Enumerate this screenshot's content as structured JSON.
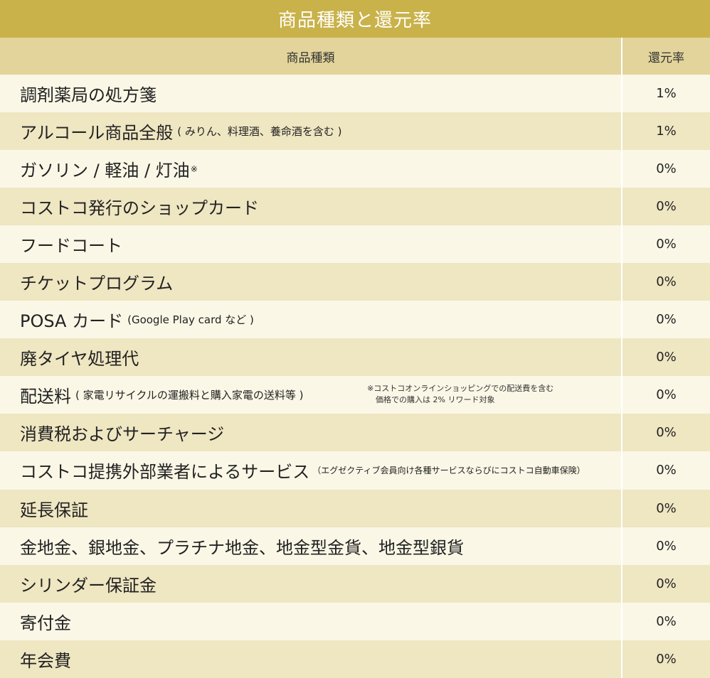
{
  "title": "商品種類と還元率",
  "header": {
    "col1": "商品種類",
    "col2": "還元率"
  },
  "rows": [
    {
      "name": "調剤薬局の処方箋",
      "sub": "",
      "rate": "1%"
    },
    {
      "name": "アルコール商品全般",
      "sub": "( みりん、料理酒、養命酒を含む )",
      "rate": "1%"
    },
    {
      "name": "ガソリン / 軽油 / 灯油",
      "sup": "※",
      "rate": "0%"
    },
    {
      "name": "コストコ発行のショップカード",
      "rate": "0%"
    },
    {
      "name": "フードコート",
      "rate": "0%"
    },
    {
      "name": "チケットプログラム",
      "rate": "0%"
    },
    {
      "name": "POSA カード",
      "sub": "(Google Play card など )",
      "rate": "0%"
    },
    {
      "name": "廃タイヤ処理代",
      "rate": "0%"
    },
    {
      "name": "配送料",
      "sub": "( 家電リサイクルの運搬料と購入家電の送料等 )",
      "note1": "※コストコオンラインショッピングでの配送費を含む",
      "note2": "価格での購入は 2% リワード対象",
      "rate": "0%"
    },
    {
      "name": "消費税およびサーチャージ",
      "rate": "0%"
    },
    {
      "name": "コストコ提携外部業者によるサービス",
      "sub": "（エグゼクティブ会員向け各種サービスならびにコストコ自動車保険）",
      "rate": "0%"
    },
    {
      "name": "延長保証",
      "rate": "0%"
    },
    {
      "name": "金地金、銀地金、プラチナ地金、地金型金貨、地金型銀貨",
      "rate": "0%"
    },
    {
      "name": "シリンダー保証金",
      "rate": "0%"
    },
    {
      "name": "寄付金",
      "rate": "0%"
    },
    {
      "name": "年会費",
      "rate": "0%"
    }
  ]
}
